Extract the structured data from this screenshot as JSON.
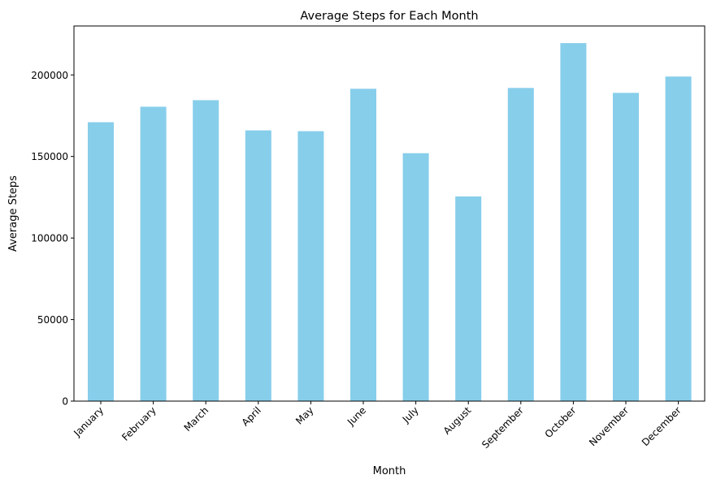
{
  "chart_data": {
    "type": "bar",
    "title": "Average Steps for Each Month",
    "xlabel": "Month",
    "ylabel": "Average Steps",
    "categories": [
      "January",
      "February",
      "March",
      "April",
      "May",
      "June",
      "July",
      "August",
      "September",
      "October",
      "November",
      "December"
    ],
    "values": [
      171000,
      180500,
      184500,
      166000,
      165500,
      191500,
      152000,
      125500,
      192000,
      219500,
      189000,
      199000
    ],
    "ylim": [
      0,
      230000
    ],
    "yticks": [
      0,
      50000,
      100000,
      150000,
      200000
    ],
    "ytick_labels": [
      "0",
      "50000",
      "100000",
      "150000",
      "200000"
    ],
    "grid": false,
    "legend": "none",
    "bar_color": "#87CEEB",
    "xtick_rotation": 45
  }
}
